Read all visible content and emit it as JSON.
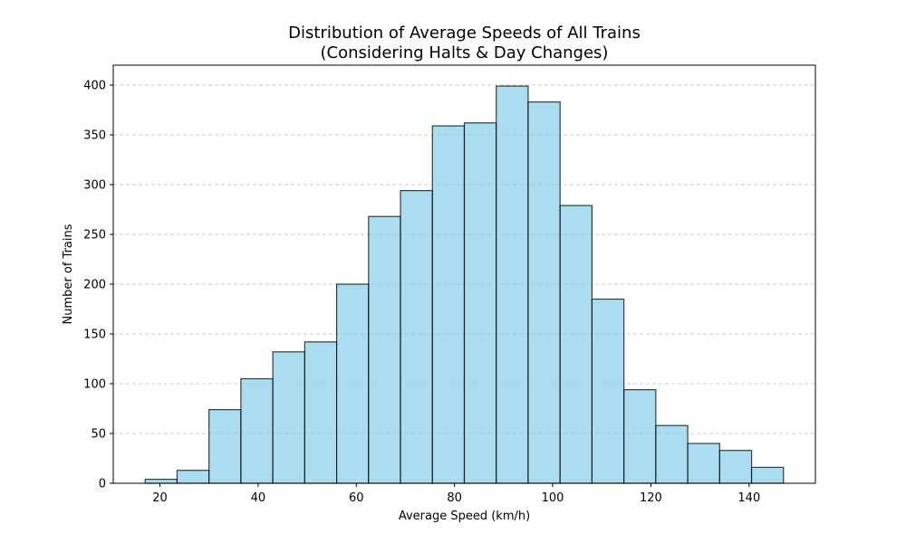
{
  "chart_data": {
    "type": "bar",
    "subtype": "histogram",
    "title_lines": [
      "Distribution of Average Speeds of All Trains",
      "(Considering Halts & Day Changes)"
    ],
    "xlabel": "Average Speed (km/h)",
    "ylabel": "Number of Trains",
    "bin_edges": [
      17.0,
      23.5,
      30.0,
      36.5,
      43.0,
      49.5,
      56.0,
      62.5,
      69.0,
      75.5,
      82.0,
      88.5,
      95.0,
      101.5,
      108.0,
      114.5,
      121.0,
      127.5,
      134.0,
      140.5,
      147.0
    ],
    "values": [
      4,
      13,
      74,
      105,
      132,
      142,
      200,
      268,
      294,
      359,
      362,
      399,
      383,
      279,
      185,
      94,
      58,
      40,
      33,
      16
    ],
    "xlim": [
      10.5,
      153.5
    ],
    "ylim": [
      0,
      420
    ],
    "xticks": [
      20,
      40,
      60,
      80,
      100,
      120,
      140
    ],
    "yticks": [
      0,
      50,
      100,
      150,
      200,
      250,
      300,
      350,
      400
    ],
    "grid": {
      "y": true,
      "style": "dashed"
    },
    "colors": {
      "bar_fill": "#87ceeb",
      "bar_opacity": 0.7,
      "bar_edge": "#000000",
      "grid": "#cccccc"
    }
  }
}
